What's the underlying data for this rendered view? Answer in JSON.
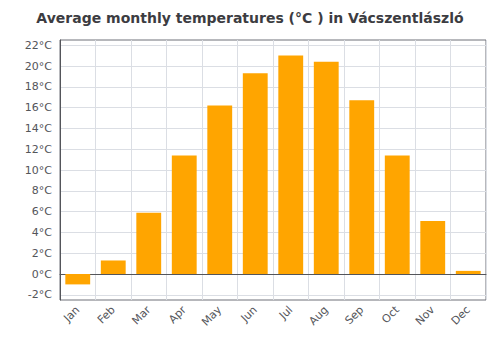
{
  "chart_data": {
    "type": "bar",
    "title": "Average monthly temperatures (°C ) in Vácszentlászló",
    "categories": [
      "Jan",
      "Feb",
      "Mar",
      "Apr",
      "May",
      "Jun",
      "Jul",
      "Aug",
      "Sep",
      "Oct",
      "Nov",
      "Dec"
    ],
    "values": [
      -1.0,
      1.3,
      5.9,
      11.4,
      16.2,
      19.3,
      21.0,
      20.4,
      16.7,
      11.4,
      5.1,
      0.3
    ],
    "color": "#FFA500",
    "ylim": [
      -2.5,
      22.5
    ],
    "yticks": [
      {
        "value": -2,
        "label": "-2°C"
      },
      {
        "value": 0,
        "label": "0°C"
      },
      {
        "value": 2,
        "label": "2°C"
      },
      {
        "value": 4,
        "label": "4°C"
      },
      {
        "value": 6,
        "label": "6°C"
      },
      {
        "value": 8,
        "label": "8°C"
      },
      {
        "value": 10,
        "label": "10°C"
      },
      {
        "value": 12,
        "label": "12°C"
      },
      {
        "value": 14,
        "label": "14°C"
      },
      {
        "value": 16,
        "label": "16°C"
      },
      {
        "value": 18,
        "label": "18°C"
      },
      {
        "value": 20,
        "label": "20°C"
      },
      {
        "value": 22,
        "label": "22°C"
      }
    ],
    "grid": true
  }
}
